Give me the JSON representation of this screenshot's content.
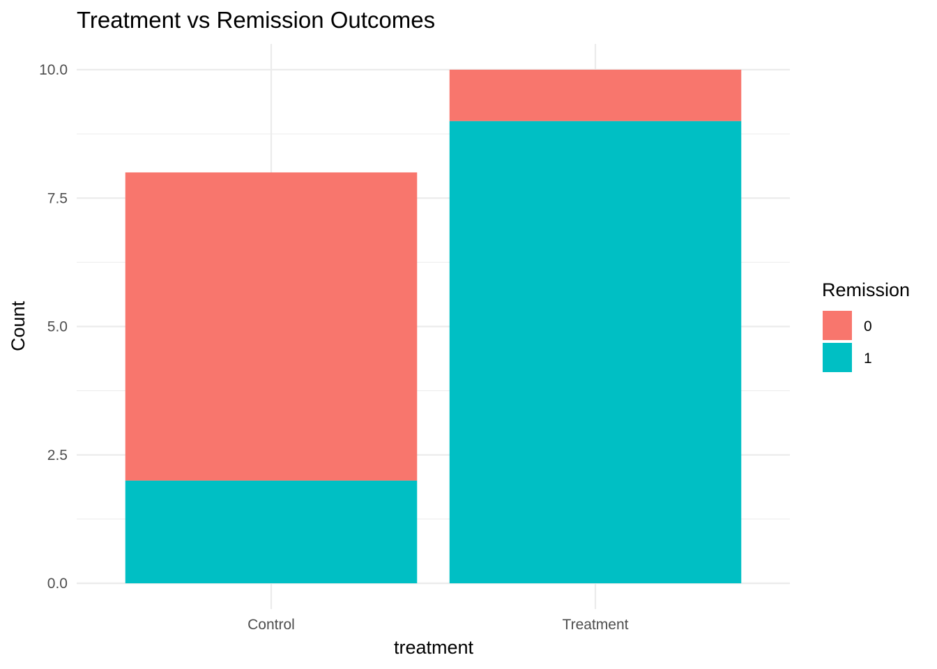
{
  "chart_data": {
    "type": "bar",
    "stacked": true,
    "title": "Treatment vs Remission Outcomes",
    "xlabel": "treatment",
    "ylabel": "Count",
    "categories": [
      "Control",
      "Treatment"
    ],
    "series": [
      {
        "name": "0",
        "values": [
          6,
          1
        ],
        "color": "#F8766D"
      },
      {
        "name": "1",
        "values": [
          2,
          9
        ],
        "color": "#00BFC4"
      }
    ],
    "ylim": [
      0,
      10
    ],
    "yticks": [
      0.0,
      2.5,
      5.0,
      7.5,
      10.0
    ],
    "ytick_labels": [
      "0.0",
      "2.5",
      "5.0",
      "7.5",
      "10.0"
    ],
    "grid": true,
    "legend": {
      "title": "Remission",
      "placement": "right"
    }
  }
}
